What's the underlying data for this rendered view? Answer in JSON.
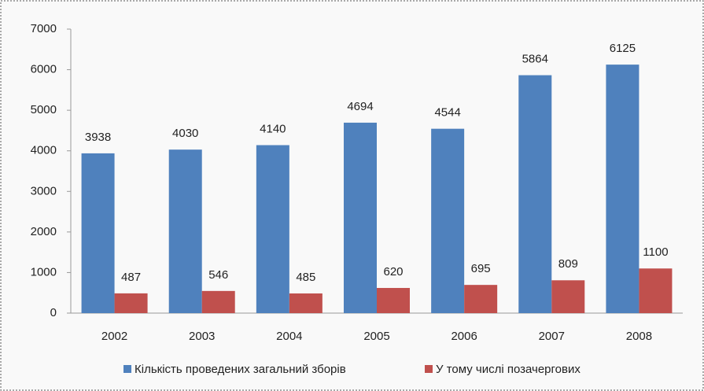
{
  "chart_data": {
    "type": "bar",
    "categories": [
      "2002",
      "2003",
      "2004",
      "2005",
      "2006",
      "2007",
      "2008"
    ],
    "series": [
      {
        "name": "Кількість проведених загальний зборів",
        "color": "#4f81bd",
        "values": [
          3938,
          4030,
          4140,
          4694,
          4544,
          5864,
          6125
        ]
      },
      {
        "name": "У тому числі позачергових",
        "color": "#c0504d",
        "values": [
          487,
          546,
          485,
          620,
          695,
          809,
          1100
        ]
      }
    ],
    "ylim": [
      0,
      7000
    ],
    "yticks": [
      0,
      1000,
      2000,
      3000,
      4000,
      5000,
      6000,
      7000
    ],
    "grid": false,
    "legend": "bottom"
  }
}
